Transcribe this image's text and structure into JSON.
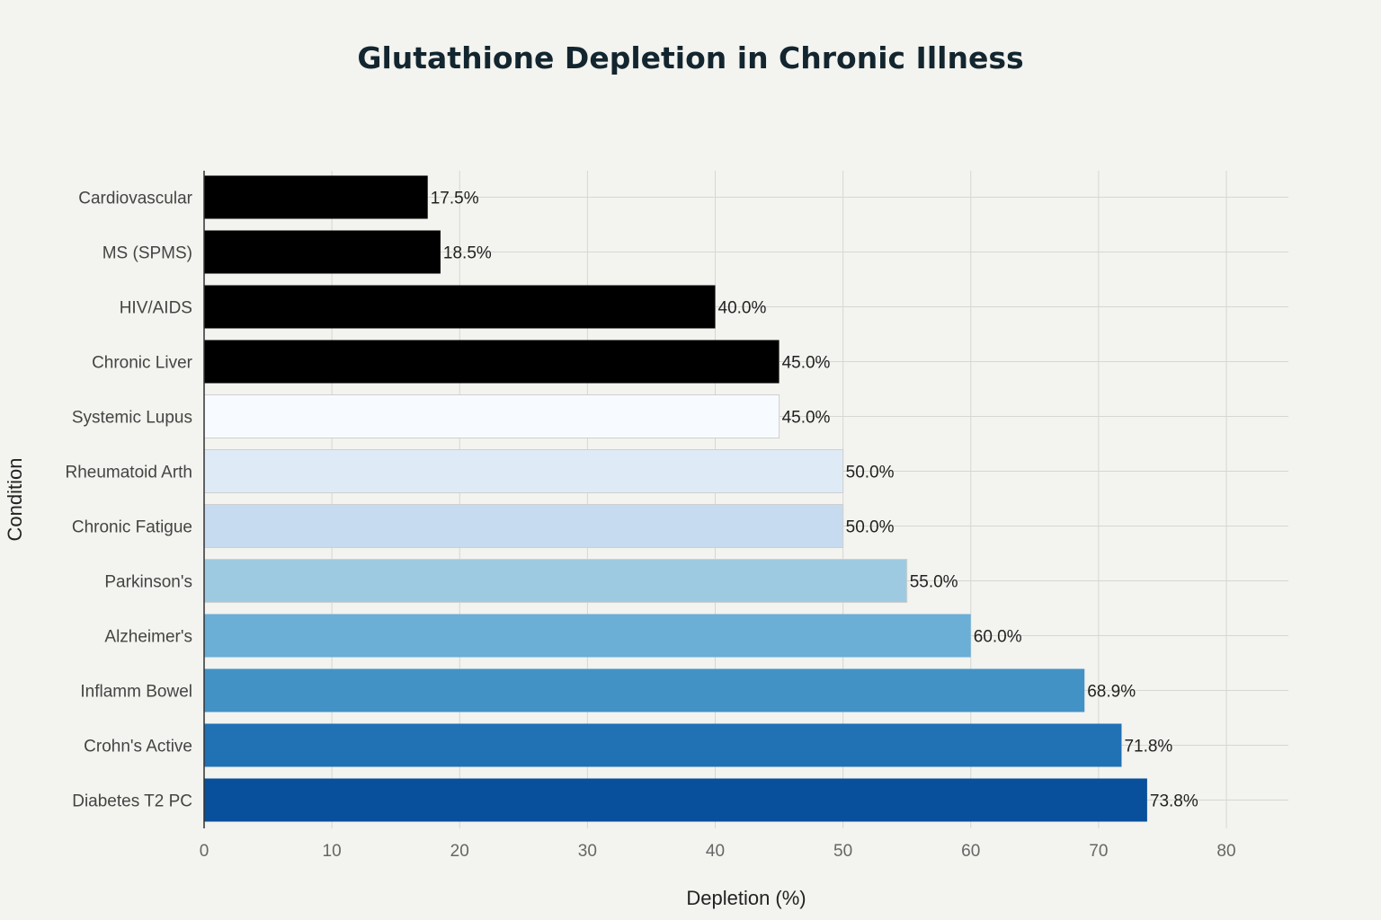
{
  "chart_data": {
    "type": "bar",
    "orientation": "horizontal",
    "title": "Glutathione Depletion in Chronic Illness",
    "xlabel": "Depletion (%)",
    "ylabel": "Condition",
    "xlim": [
      0,
      85
    ],
    "x_ticks": [
      0,
      10,
      20,
      30,
      40,
      50,
      60,
      70,
      80
    ],
    "grid": true,
    "categories": [
      "Cardiovascular",
      "MS (SPMS)",
      "HIV/AIDS",
      "Chronic Liver",
      "Systemic Lupus",
      "Rheumatoid Arth",
      "Chronic Fatigue",
      "Parkinson's",
      "Alzheimer's",
      "Inflamm Bowel",
      "Crohn's Active",
      "Diabetes T2 PC"
    ],
    "values": [
      17.5,
      18.5,
      40.0,
      45.0,
      45.0,
      50.0,
      50.0,
      55.0,
      60.0,
      68.9,
      71.8,
      73.8
    ],
    "data_labels": [
      "17.5%",
      "18.5%",
      "40.0%",
      "45.0%",
      "45.0%",
      "50.0%",
      "50.0%",
      "55.0%",
      "60.0%",
      "68.9%",
      "71.8%",
      "73.8%"
    ],
    "colors": [
      "#000000",
      "#000000",
      "#000000",
      "#000000",
      "#f7fbff",
      "#deebf7",
      "#c6dbef",
      "#9ecae1",
      "#6baed6",
      "#4292c6",
      "#2171b5",
      "#084f9c"
    ]
  }
}
